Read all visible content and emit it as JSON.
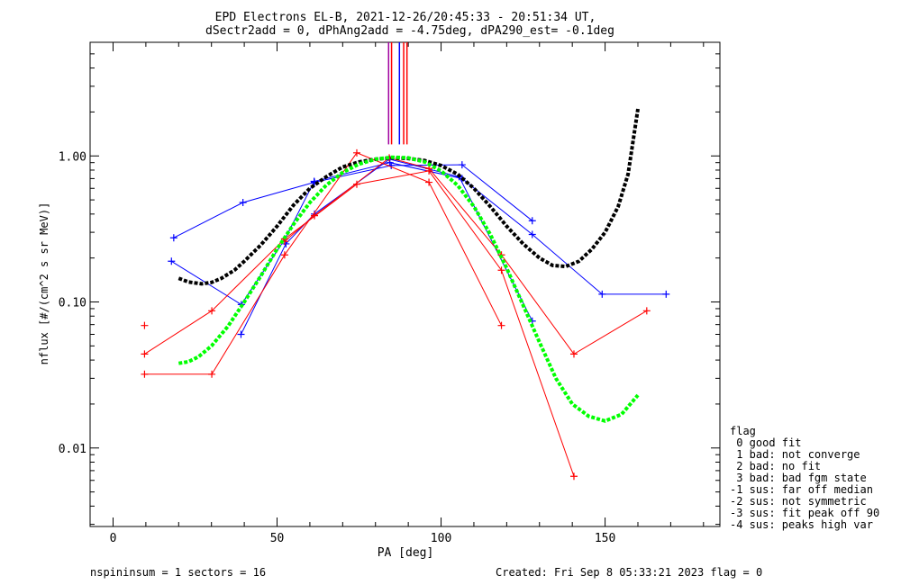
{
  "chart_data": {
    "type": "line",
    "title_line1": "EPD Electrons EL-B, 2021-12-26/20:45:33 - 20:51:34 UT,",
    "title_line2": "dSectr2add = 0, dPhAng2add = -4.75deg, dPA290_est=  -0.1deg",
    "xlabel": "PA [deg]",
    "ylabel": "nflux [#/(cm^2 s sr MeV)]",
    "xlim": [
      -7,
      185
    ],
    "ylim": [
      0.0029,
      6.0
    ],
    "yscale": "log",
    "x_ticks": [
      {
        "v": 0,
        "label": "0"
      },
      {
        "v": 50,
        "label": "50"
      },
      {
        "v": 100,
        "label": "100"
      },
      {
        "v": 150,
        "label": "150"
      }
    ],
    "y_ticks": [
      {
        "v": 0.01,
        "label": "0.01"
      },
      {
        "v": 0.1,
        "label": "0.10"
      },
      {
        "v": 1.0,
        "label": "1.00"
      }
    ],
    "footer_left": "nspininsum =  1  sectors = 16",
    "footer_right": "Created: Fri Sep  8 05:33:21 2023   flag = 0",
    "legend": {
      "title": "flag",
      "entries": [
        " 0 good fit",
        " 1 bad: not converge",
        " 2 bad: no fit",
        " 3 bad: bad fgm state",
        "-1 sus: far off median",
        "-2 sus: not symmetric",
        "-3 sus: fit peak off 90",
        "-4 sus: peaks high var"
      ]
    },
    "colors": {
      "red": "#ff0000",
      "blue": "#0000ff",
      "black": "#000000",
      "green": "#00ff00",
      "purple": "#a000a0"
    },
    "vertical_markers": [
      {
        "x": 84.0,
        "y_bottom": 1.2,
        "y_top": 6.0,
        "color": "#a000a0"
      },
      {
        "x": 84.9,
        "y_bottom": 1.2,
        "y_top": 6.0,
        "color": "#ff0000"
      },
      {
        "x": 87.3,
        "y_bottom": 1.2,
        "y_top": 6.0,
        "color": "#0000ff"
      },
      {
        "x": 88.6,
        "y_bottom": 1.2,
        "y_top": 6.0,
        "color": "#ff0000"
      },
      {
        "x": 89.6,
        "y_bottom": 1.2,
        "y_top": 6.0,
        "color": "#ff0000"
      }
    ],
    "series": [
      {
        "color": "#0000ff",
        "points": [
          [
            17.8,
            0.19
          ],
          [
            39.1,
            0.096
          ],
          [
            52.4,
            0.27
          ],
          [
            61.3,
            0.67
          ],
          [
            84.4,
            0.9
          ],
          [
            106.4,
            0.7
          ],
          [
            127.8,
            0.29
          ],
          [
            149.1,
            0.113
          ],
          [
            168.6,
            0.113
          ]
        ]
      },
      {
        "color": "#0000ff",
        "points": [
          [
            18.5,
            0.275
          ],
          [
            39.6,
            0.48
          ],
          [
            61.4,
            0.66
          ],
          [
            84.8,
            0.86
          ],
          [
            106.4,
            0.87
          ],
          [
            127.8,
            0.36
          ]
        ]
      },
      {
        "color": "#0000ff",
        "points": [
          [
            39.0,
            0.06
          ],
          [
            52.7,
            0.25
          ],
          [
            61.4,
            0.4
          ],
          [
            84.3,
            0.95
          ],
          [
            105.5,
            0.72
          ],
          [
            127.8,
            0.074
          ]
        ]
      },
      {
        "color": "#ff0000",
        "points": [
          [
            9.6,
            0.044
          ],
          [
            30.1,
            0.087
          ],
          [
            52.3,
            0.27
          ],
          [
            74.3,
            0.64
          ],
          [
            96.3,
            0.79
          ],
          [
            118.4,
            0.165
          ],
          [
            140.5,
            0.0064
          ]
        ]
      },
      {
        "color": "#ff0000",
        "points": [
          [
            9.6,
            0.032
          ],
          [
            30.1,
            0.032
          ],
          [
            52.3,
            0.21
          ],
          [
            74.3,
            1.05
          ],
          [
            96.3,
            0.66
          ],
          [
            118.4,
            0.069
          ]
        ]
      },
      {
        "color": "#ff0000",
        "points": [
          [
            52.3,
            0.26
          ],
          [
            61.4,
            0.39
          ],
          [
            84.2,
            0.97
          ],
          [
            96.3,
            0.82
          ],
          [
            118.4,
            0.21
          ],
          [
            140.5,
            0.044
          ],
          [
            162.7,
            0.087
          ]
        ]
      },
      {
        "color": "#ff0000",
        "points": [
          [
            9.6,
            0.069
          ]
        ]
      }
    ],
    "fits": [
      {
        "color": "#000000",
        "points": [
          [
            20,
            0.145
          ],
          [
            23,
            0.137
          ],
          [
            27,
            0.133
          ],
          [
            30,
            0.136
          ],
          [
            33,
            0.145
          ],
          [
            37,
            0.165
          ],
          [
            40,
            0.19
          ],
          [
            45,
            0.245
          ],
          [
            50,
            0.33
          ],
          [
            55,
            0.46
          ],
          [
            60,
            0.6
          ],
          [
            65,
            0.72
          ],
          [
            70,
            0.84
          ],
          [
            75,
            0.91
          ],
          [
            80,
            0.95
          ],
          [
            85,
            0.97
          ],
          [
            90,
            0.96
          ],
          [
            95,
            0.93
          ],
          [
            100,
            0.86
          ],
          [
            105,
            0.75
          ],
          [
            110,
            0.6
          ],
          [
            115,
            0.45
          ],
          [
            120,
            0.33
          ],
          [
            125,
            0.25
          ],
          [
            130,
            0.2
          ],
          [
            134,
            0.178
          ],
          [
            138,
            0.175
          ],
          [
            142,
            0.19
          ],
          [
            146,
            0.23
          ],
          [
            150,
            0.3
          ],
          [
            154,
            0.45
          ],
          [
            157,
            0.75
          ],
          [
            160,
            2.1
          ]
        ]
      },
      {
        "color": "#00ff00",
        "points": [
          [
            20,
            0.038
          ],
          [
            23,
            0.039
          ],
          [
            26,
            0.042
          ],
          [
            30,
            0.05
          ],
          [
            35,
            0.068
          ],
          [
            40,
            0.1
          ],
          [
            45,
            0.15
          ],
          [
            50,
            0.23
          ],
          [
            55,
            0.34
          ],
          [
            60,
            0.48
          ],
          [
            65,
            0.63
          ],
          [
            70,
            0.77
          ],
          [
            75,
            0.88
          ],
          [
            80,
            0.95
          ],
          [
            85,
            0.98
          ],
          [
            90,
            0.97
          ],
          [
            95,
            0.91
          ],
          [
            100,
            0.79
          ],
          [
            105,
            0.63
          ],
          [
            110,
            0.45
          ],
          [
            115,
            0.29
          ],
          [
            120,
            0.17
          ],
          [
            125,
            0.095
          ],
          [
            130,
            0.053
          ],
          [
            135,
            0.03
          ],
          [
            140,
            0.02
          ],
          [
            145,
            0.0165
          ],
          [
            150,
            0.0153
          ],
          [
            155,
            0.017
          ],
          [
            160,
            0.023
          ]
        ]
      }
    ]
  }
}
